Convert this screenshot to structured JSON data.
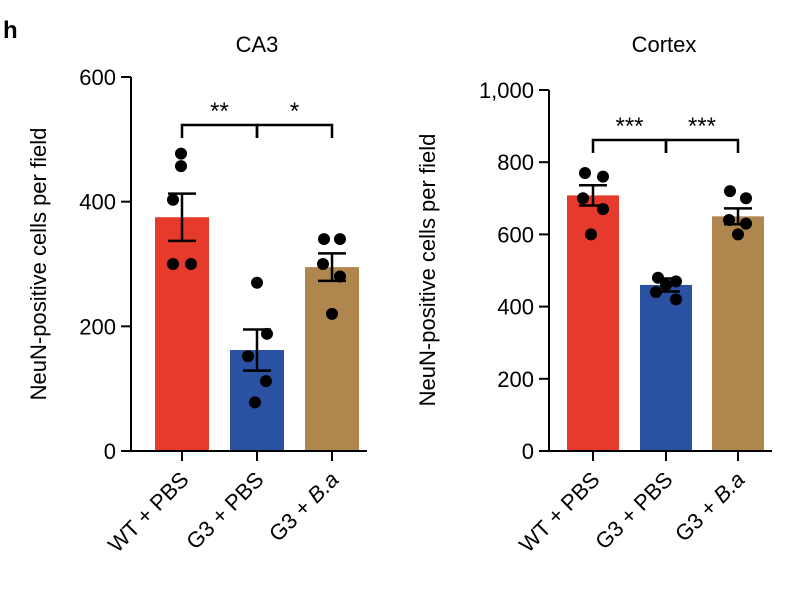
{
  "panel_label": "h",
  "chart_data": [
    {
      "type": "bar",
      "title": "CA3",
      "xlabel": "",
      "ylabel": "NeuN-positive cells per field",
      "ylim": [
        0,
        600
      ],
      "yticks": [
        0,
        200,
        400,
        600
      ],
      "ytick_labels": [
        "0",
        "200",
        "400",
        "600"
      ],
      "categories": [
        "WT + PBS",
        "G3 + PBS",
        "G3 + B.a"
      ],
      "category_parts": [
        {
          "plain": "WT + PBS",
          "italic": ""
        },
        {
          "plain": "G3 + PBS",
          "italic": ""
        },
        {
          "plain": "G3 + ",
          "italic": "B.a"
        }
      ],
      "values": [
        375,
        162,
        295
      ],
      "sem": [
        38,
        33,
        22
      ],
      "points": [
        [
          477,
          457,
          403,
          300,
          300
        ],
        [
          270,
          188,
          152,
          112,
          78
        ],
        [
          340,
          340,
          300,
          280,
          220
        ]
      ],
      "colors": [
        "#e53a2c",
        "#2b52a2",
        "#b0864f"
      ],
      "significance": [
        {
          "from": 0,
          "to": 1,
          "label": "**"
        },
        {
          "from": 1,
          "to": 2,
          "label": "*"
        }
      ],
      "grid": false
    },
    {
      "type": "bar",
      "title": "Cortex",
      "xlabel": "",
      "ylabel": "NeuN-positive cells per field",
      "ylim": [
        0,
        1000
      ],
      "yticks": [
        0,
        200,
        400,
        600,
        800,
        1000
      ],
      "ytick_labels": [
        "0",
        "200",
        "400",
        "600",
        "800",
        "1,000"
      ],
      "categories": [
        "WT + PBS",
        "G3 + PBS",
        "G3 + B.a"
      ],
      "category_parts": [
        {
          "plain": "WT + PBS",
          "italic": ""
        },
        {
          "plain": "G3 + PBS",
          "italic": ""
        },
        {
          "plain": "G3 + ",
          "italic": "B.a"
        }
      ],
      "values": [
        708,
        460,
        650
      ],
      "sem": [
        28,
        18,
        22
      ],
      "points": [
        [
          770,
          760,
          700,
          670,
          600
        ],
        [
          480,
          470,
          460,
          440,
          420
        ],
        [
          720,
          700,
          640,
          630,
          600
        ]
      ],
      "colors": [
        "#e53a2c",
        "#2b52a2",
        "#b0864f"
      ],
      "significance": [
        {
          "from": 0,
          "to": 1,
          "label": "***"
        },
        {
          "from": 1,
          "to": 2,
          "label": "***"
        }
      ],
      "grid": false
    }
  ]
}
